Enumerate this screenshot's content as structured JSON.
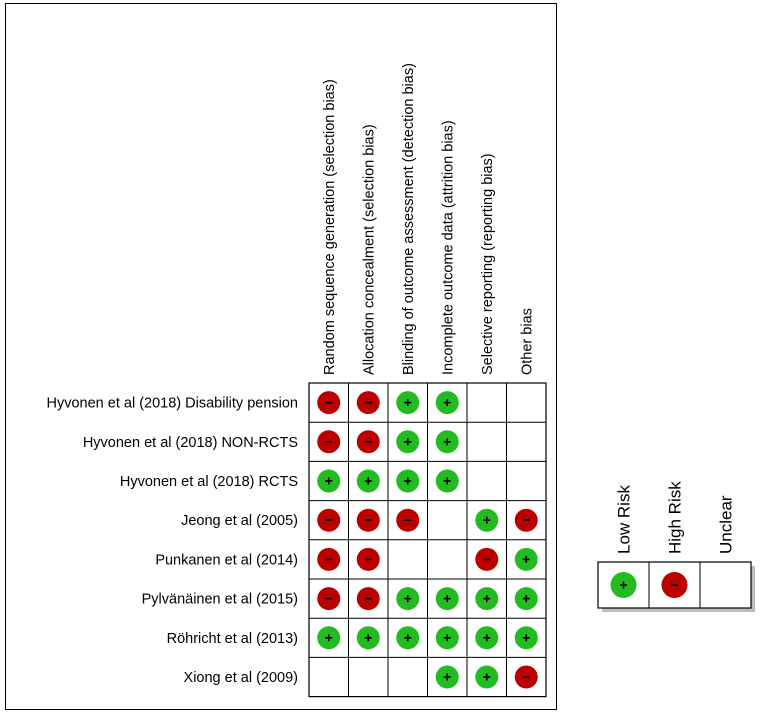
{
  "chart_data": {
    "type": "table",
    "title": "",
    "domains": [
      "Random sequence generation (selection bias)",
      "Allocation concealment (selection bias)",
      "Blinding of outcome assessment (detection bias)",
      "Incomplete outcome data (attrition bias)",
      "Selective reporting (reporting bias)",
      "Other bias"
    ],
    "studies": [
      {
        "name": "Hyvonen et al (2018) Disability pension",
        "ratings": [
          "high",
          "high",
          "low",
          "low",
          "unclear",
          "unclear"
        ]
      },
      {
        "name": "Hyvonen et al (2018) NON-RCTS",
        "ratings": [
          "high",
          "high",
          "low",
          "low",
          "unclear",
          "unclear"
        ]
      },
      {
        "name": "Hyvonen et al (2018) RCTS",
        "ratings": [
          "low",
          "low",
          "low",
          "low",
          "unclear",
          "unclear"
        ]
      },
      {
        "name": "Jeong et al (2005)",
        "ratings": [
          "high",
          "high",
          "high",
          "unclear",
          "low",
          "high"
        ]
      },
      {
        "name": "Punkanen et al (2014)",
        "ratings": [
          "high",
          "high",
          "unclear",
          "unclear",
          "high",
          "low"
        ]
      },
      {
        "name": "Pylvänäinen et al (2015)",
        "ratings": [
          "high",
          "high",
          "low",
          "low",
          "low",
          "low"
        ]
      },
      {
        "name": "Röhricht et al (2013)",
        "ratings": [
          "low",
          "low",
          "low",
          "low",
          "low",
          "low"
        ]
      },
      {
        "name": "Xiong et al (2009)",
        "ratings": [
          "unclear",
          "unclear",
          "unclear",
          "low",
          "low",
          "high"
        ]
      }
    ],
    "legend": [
      {
        "key": "low",
        "label": "Low Risk"
      },
      {
        "key": "high",
        "label": "High Risk"
      },
      {
        "key": "unclear",
        "label": "Unclear"
      }
    ],
    "symbols": {
      "low": "+",
      "high": "−",
      "unclear": ""
    },
    "colors": {
      "low": "#22bb22",
      "high": "#bb0000",
      "border": "#000000"
    }
  }
}
